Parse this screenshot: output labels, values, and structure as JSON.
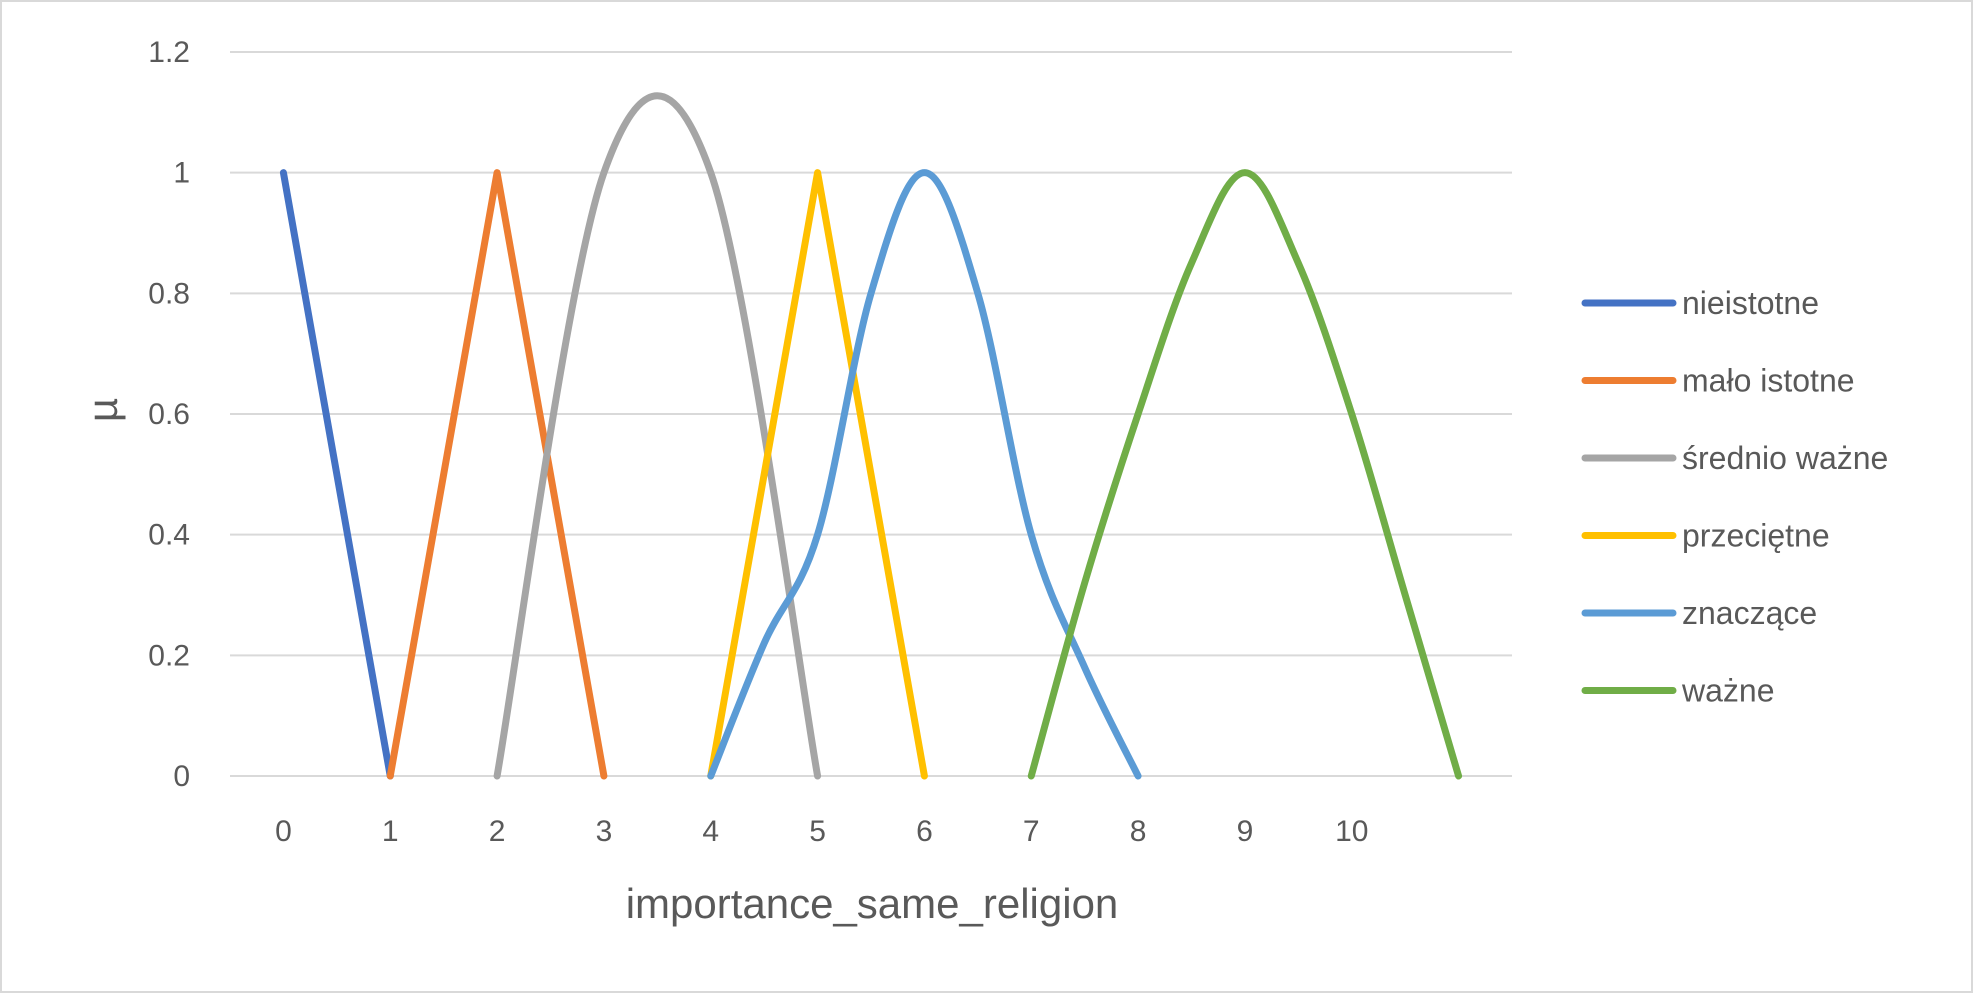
{
  "chart_data": {
    "type": "line",
    "title": "",
    "xlabel": "importance_same_religion",
    "ylabel": "µ",
    "xlim": [
      -0.5,
      11.5
    ],
    "ylim": [
      0,
      1.2
    ],
    "x_ticks": [
      "0",
      "1",
      "2",
      "3",
      "4",
      "5",
      "6",
      "7",
      "8",
      "9",
      "10"
    ],
    "y_ticks": [
      "0",
      "0.2",
      "0.4",
      "0.6",
      "0.8",
      "1",
      "1.2"
    ],
    "grid": "horizontal",
    "legend_position": "right",
    "series": [
      {
        "name": "nieistotne",
        "color": "#4472C4",
        "points": [
          [
            0,
            1
          ],
          [
            1,
            0
          ]
        ]
      },
      {
        "name": "mało istotne",
        "color": "#ED7D31",
        "points": [
          [
            1,
            0
          ],
          [
            2,
            1
          ],
          [
            3,
            0
          ]
        ]
      },
      {
        "name": "średnio ważne",
        "color": "#A5A5A5",
        "points": [
          [
            2,
            0
          ],
          [
            3,
            1
          ],
          [
            4,
            1
          ],
          [
            5,
            0
          ]
        ]
      },
      {
        "name": "przeciętne",
        "color": "#FFC000",
        "points": [
          [
            4,
            0
          ],
          [
            5,
            1
          ],
          [
            6,
            0
          ]
        ]
      },
      {
        "name": "znaczące",
        "color": "#5B9BD5",
        "points": [
          [
            4,
            0
          ],
          [
            4.5,
            0.22
          ],
          [
            5,
            0.4
          ],
          [
            5.5,
            0.8
          ],
          [
            6,
            1
          ],
          [
            6.5,
            0.8
          ],
          [
            7,
            0.4
          ],
          [
            7.5,
            0.18
          ],
          [
            8,
            0
          ]
        ]
      },
      {
        "name": "ważne",
        "color": "#70AD47",
        "points": [
          [
            7,
            0
          ],
          [
            7.5,
            0.32
          ],
          [
            8,
            0.6
          ],
          [
            8.5,
            0.85
          ],
          [
            9,
            1
          ],
          [
            9.5,
            0.85
          ],
          [
            10,
            0.6
          ],
          [
            10.5,
            0.3
          ],
          [
            11,
            0
          ]
        ]
      }
    ]
  }
}
